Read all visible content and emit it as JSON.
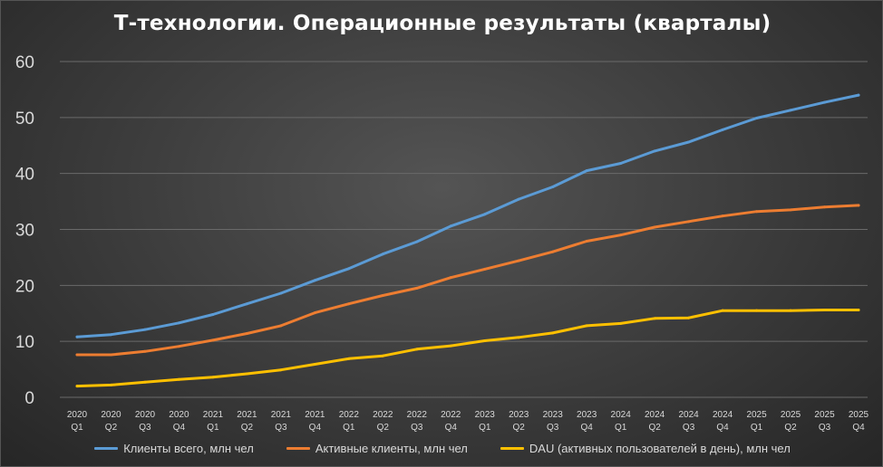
{
  "chart_data": {
    "type": "line",
    "title": "Т-технологии. Операционные результаты (кварталы)",
    "xlabel": "",
    "ylabel": "",
    "ylim": [
      0,
      60
    ],
    "yticks": [
      0,
      10,
      20,
      30,
      40,
      50,
      60
    ],
    "grid": true,
    "legend_position": "bottom",
    "categories": [
      [
        "2020",
        "Q1"
      ],
      [
        "2020",
        "Q2"
      ],
      [
        "2020",
        "Q3"
      ],
      [
        "2020",
        "Q4"
      ],
      [
        "2021",
        "Q1"
      ],
      [
        "2021",
        "Q2"
      ],
      [
        "2021",
        "Q3"
      ],
      [
        "2021",
        "Q4"
      ],
      [
        "2022",
        "Q1"
      ],
      [
        "2022",
        "Q2"
      ],
      [
        "2022",
        "Q3"
      ],
      [
        "2022",
        "Q4"
      ],
      [
        "2023",
        "Q1"
      ],
      [
        "2023",
        "Q2"
      ],
      [
        "2023",
        "Q3"
      ],
      [
        "2023",
        "Q4"
      ],
      [
        "2024",
        "Q1"
      ],
      [
        "2024",
        "Q2"
      ],
      [
        "2024",
        "Q3"
      ],
      [
        "2024",
        "Q4"
      ],
      [
        "2025",
        "Q1"
      ],
      [
        "2025",
        "Q2"
      ],
      [
        "2025",
        "Q3"
      ],
      [
        "2025",
        "Q4"
      ]
    ],
    "series": [
      {
        "name": "Клиенты всего, млн чел",
        "color": "#5b9bd5",
        "values": [
          10.8,
          11.2,
          12.1,
          13.3,
          14.8,
          16.7,
          18.6,
          20.9,
          23.0,
          25.6,
          27.8,
          30.6,
          32.7,
          35.4,
          37.6,
          40.5,
          41.8,
          44.0,
          45.6,
          47.8,
          49.9,
          51.3,
          52.7,
          54.0
        ]
      },
      {
        "name": "Активные клиенты, млн чел",
        "color": "#ed7d31",
        "values": [
          7.6,
          7.6,
          8.2,
          9.1,
          10.2,
          11.4,
          12.8,
          15.1,
          16.7,
          18.2,
          19.5,
          21.4,
          22.9,
          24.4,
          26.0,
          27.9,
          29.0,
          30.4,
          31.4,
          32.4,
          33.2,
          33.5,
          34.0,
          34.3
        ]
      },
      {
        "name": "DAU (активных пользователей в день), млн чел",
        "color": "#ffc000",
        "values": [
          2.0,
          2.2,
          2.7,
          3.2,
          3.6,
          4.2,
          4.9,
          5.9,
          6.9,
          7.4,
          8.6,
          9.2,
          10.1,
          10.7,
          11.5,
          12.8,
          13.2,
          14.1,
          14.2,
          15.5,
          15.5,
          15.5,
          15.6,
          15.6
        ]
      }
    ]
  }
}
